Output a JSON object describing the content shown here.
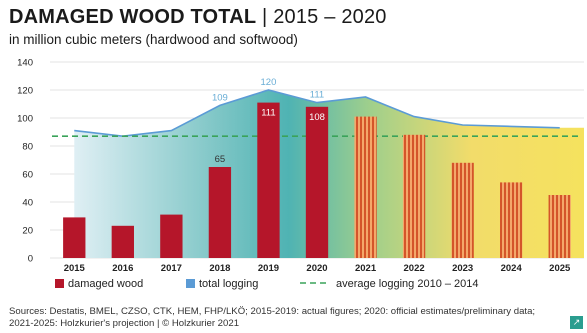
{
  "header": {
    "title_bold": "DAMAGED WOOD TOTAL",
    "title_rest": " | 2015 – 2020",
    "subtitle": "in million cubic meters (hardwood and softwood)"
  },
  "footer": {
    "source_line1": "Sources: Destatis, BMEL, CZSO, CTK, HEM, FHP/LKÖ; 2015-2019: actual figures; 2020: official estimates/preliminary data;",
    "source_line2": "2021-2025: Holzkurier's projection | © Holzkurier 2021",
    "corner_icon": "arrow-icon"
  },
  "colors": {
    "damaged_wood": "#b5162a",
    "projection_stripe": "#d4552a",
    "projection_fill": "#f4a86a",
    "total_logging_line": "#5b9bd5",
    "average_line": "#3aa35a",
    "label_light_blue": "#6aaed6"
  },
  "chart_data": {
    "type": "bar",
    "categories": [
      "2015",
      "2016",
      "2017",
      "2018",
      "2019",
      "2020",
      "2021",
      "2022",
      "2023",
      "2024",
      "2025"
    ],
    "ylim": [
      0,
      140
    ],
    "yticks": [
      0,
      20,
      40,
      60,
      80,
      100,
      120,
      140
    ],
    "grid": true,
    "legend_placement": "bottom",
    "series": [
      {
        "name": "damaged wood",
        "values": [
          29,
          23,
          31,
          65,
          111,
          108,
          101,
          88,
          68,
          54,
          45
        ],
        "projected_from_index": 6,
        "data_labels": [
          "",
          "",
          "",
          "65",
          "111",
          "108",
          "",
          "",
          "",
          "",
          ""
        ]
      },
      {
        "name": "total logging",
        "values": [
          91,
          87,
          91,
          109,
          120,
          111,
          115,
          101,
          95,
          94,
          93
        ],
        "data_labels": [
          "",
          "",
          "",
          "109",
          "120",
          "111",
          "",
          "",
          "",
          "",
          ""
        ]
      },
      {
        "name": "average logging 2010 – 2014",
        "value": 87
      }
    ]
  }
}
